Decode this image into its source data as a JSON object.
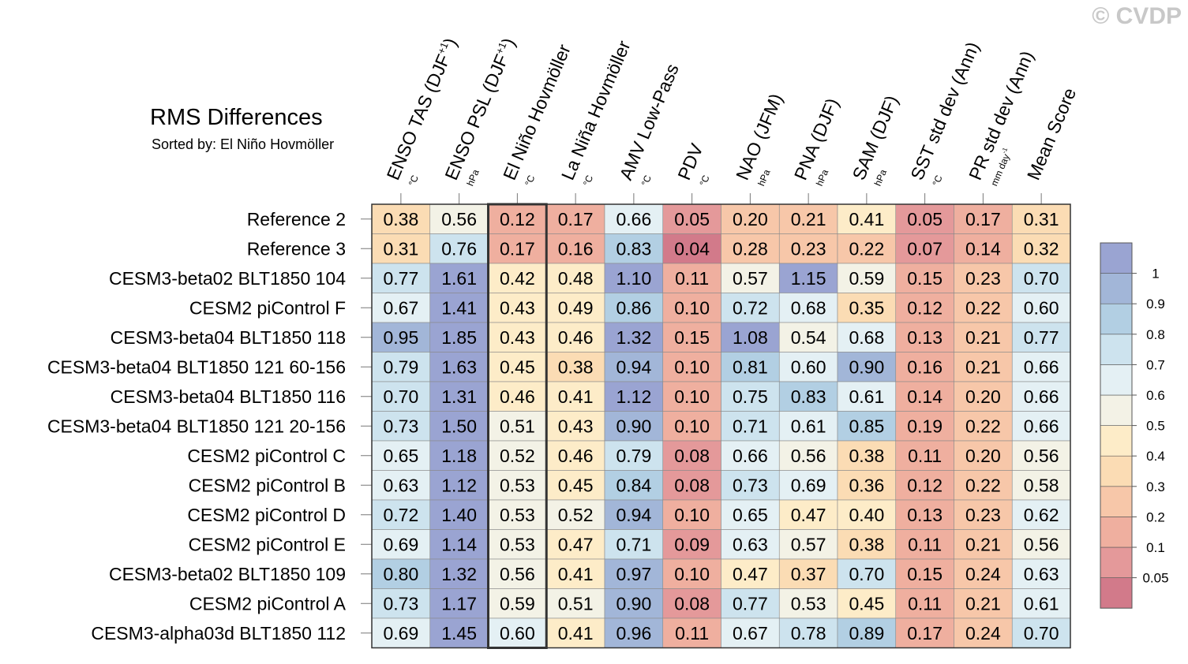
{
  "watermark": "© CVDP",
  "chart_data": {
    "type": "heatmap",
    "title": "RMS Differences",
    "subtitle": "Sorted by: El Niño Hovmöller",
    "highlight_column": 2,
    "columns": [
      {
        "label": "ENSO TAS (DJF",
        "sup": "+1",
        "after": ")",
        "unit": "°C"
      },
      {
        "label": "ENSO PSL (DJF",
        "sup": "+1",
        "after": ")",
        "unit": "hPa"
      },
      {
        "label": "El Niño Hovmöller",
        "sup": "",
        "after": "",
        "unit": "°C"
      },
      {
        "label": "La Niña Hovmöller",
        "sup": "",
        "after": "",
        "unit": "°C"
      },
      {
        "label": "AMV Low-Pass",
        "sup": "",
        "after": "",
        "unit": "°C"
      },
      {
        "label": "PDV",
        "sup": "",
        "after": "",
        "unit": "°C"
      },
      {
        "label": "NAO (JFM)",
        "sup": "",
        "after": "",
        "unit": "hPa"
      },
      {
        "label": "PNA (DJF)",
        "sup": "",
        "after": "",
        "unit": "hPa"
      },
      {
        "label": "SAM (DJF)",
        "sup": "",
        "after": "",
        "unit": "hPa"
      },
      {
        "label": "SST std dev (Ann)",
        "sup": "",
        "after": "",
        "unit": "°C"
      },
      {
        "label": "PR std dev (Ann)",
        "sup": "",
        "after": "",
        "unit": "mm day",
        "unit_sup": "-1"
      },
      {
        "label": "Mean Score",
        "sup": "",
        "after": "",
        "unit": ""
      }
    ],
    "rows": [
      {
        "name": "Reference 2",
        "values": [
          "0.38",
          "0.56",
          "0.12",
          "0.17",
          "0.66",
          "0.05",
          "0.20",
          "0.21",
          "0.41",
          "0.05",
          "0.17",
          "0.31"
        ]
      },
      {
        "name": "Reference 3",
        "values": [
          "0.31",
          "0.76",
          "0.17",
          "0.16",
          "0.83",
          "0.04",
          "0.28",
          "0.23",
          "0.22",
          "0.07",
          "0.14",
          "0.32"
        ]
      },
      {
        "name": "CESM3-beta02 BLT1850 104",
        "values": [
          "0.77",
          "1.61",
          "0.42",
          "0.48",
          "1.10",
          "0.11",
          "0.57",
          "1.15",
          "0.59",
          "0.15",
          "0.23",
          "0.70"
        ]
      },
      {
        "name": "CESM2 piControl F",
        "values": [
          "0.67",
          "1.41",
          "0.43",
          "0.49",
          "0.86",
          "0.10",
          "0.72",
          "0.68",
          "0.35",
          "0.12",
          "0.22",
          "0.60"
        ]
      },
      {
        "name": "CESM3-beta04 BLT1850 118",
        "values": [
          "0.95",
          "1.85",
          "0.43",
          "0.46",
          "1.32",
          "0.15",
          "1.08",
          "0.54",
          "0.68",
          "0.13",
          "0.21",
          "0.77"
        ]
      },
      {
        "name": "CESM3-beta04 BLT1850 121 60-156",
        "values": [
          "0.79",
          "1.63",
          "0.45",
          "0.38",
          "0.94",
          "0.10",
          "0.81",
          "0.60",
          "0.90",
          "0.16",
          "0.21",
          "0.66"
        ]
      },
      {
        "name": "CESM3-beta04 BLT1850 116",
        "values": [
          "0.70",
          "1.31",
          "0.46",
          "0.41",
          "1.12",
          "0.10",
          "0.75",
          "0.83",
          "0.61",
          "0.14",
          "0.20",
          "0.66"
        ]
      },
      {
        "name": "CESM3-beta04 BLT1850 121 20-156",
        "values": [
          "0.73",
          "1.50",
          "0.51",
          "0.43",
          "0.90",
          "0.10",
          "0.71",
          "0.61",
          "0.85",
          "0.19",
          "0.22",
          "0.66"
        ]
      },
      {
        "name": "CESM2 piControl C",
        "values": [
          "0.65",
          "1.18",
          "0.52",
          "0.46",
          "0.79",
          "0.08",
          "0.66",
          "0.56",
          "0.38",
          "0.11",
          "0.20",
          "0.56"
        ]
      },
      {
        "name": "CESM2 piControl B",
        "values": [
          "0.63",
          "1.12",
          "0.53",
          "0.45",
          "0.84",
          "0.08",
          "0.73",
          "0.69",
          "0.36",
          "0.12",
          "0.22",
          "0.58"
        ]
      },
      {
        "name": "CESM2 piControl D",
        "values": [
          "0.72",
          "1.40",
          "0.53",
          "0.52",
          "0.94",
          "0.10",
          "0.65",
          "0.47",
          "0.40",
          "0.13",
          "0.23",
          "0.62"
        ]
      },
      {
        "name": "CESM2 piControl E",
        "values": [
          "0.69",
          "1.14",
          "0.53",
          "0.47",
          "0.71",
          "0.09",
          "0.63",
          "0.57",
          "0.38",
          "0.11",
          "0.21",
          "0.56"
        ]
      },
      {
        "name": "CESM3-beta02 BLT1850 109",
        "values": [
          "0.80",
          "1.32",
          "0.56",
          "0.41",
          "0.97",
          "0.10",
          "0.47",
          "0.37",
          "0.70",
          "0.15",
          "0.24",
          "0.63"
        ]
      },
      {
        "name": "CESM2 piControl A",
        "values": [
          "0.73",
          "1.17",
          "0.59",
          "0.51",
          "0.90",
          "0.08",
          "0.77",
          "0.53",
          "0.45",
          "0.11",
          "0.21",
          "0.61"
        ]
      },
      {
        "name": "CESM3-alpha03d BLT1850 112",
        "values": [
          "0.69",
          "1.45",
          "0.60",
          "0.41",
          "0.96",
          "0.11",
          "0.67",
          "0.78",
          "0.89",
          "0.17",
          "0.24",
          "0.70"
        ]
      }
    ],
    "colorbar": {
      "thresholds": [
        0.05,
        0.1,
        0.2,
        0.3,
        0.4,
        0.5,
        0.6,
        0.7,
        0.8,
        0.9,
        1
      ],
      "labels": [
        "0.05",
        "0.1",
        "0.2",
        "0.3",
        "0.4",
        "0.5",
        "0.6",
        "0.7",
        "0.8",
        "0.9",
        "1"
      ],
      "colors": [
        "#d27a8a",
        "#e4999a",
        "#efaf9f",
        "#f7c7a9",
        "#fbdcb4",
        "#fdecc8",
        "#f3f2e6",
        "#e4f0f4",
        "#cde3ee",
        "#b2cfe3",
        "#a2b6d8",
        "#9aa4d2"
      ]
    }
  }
}
